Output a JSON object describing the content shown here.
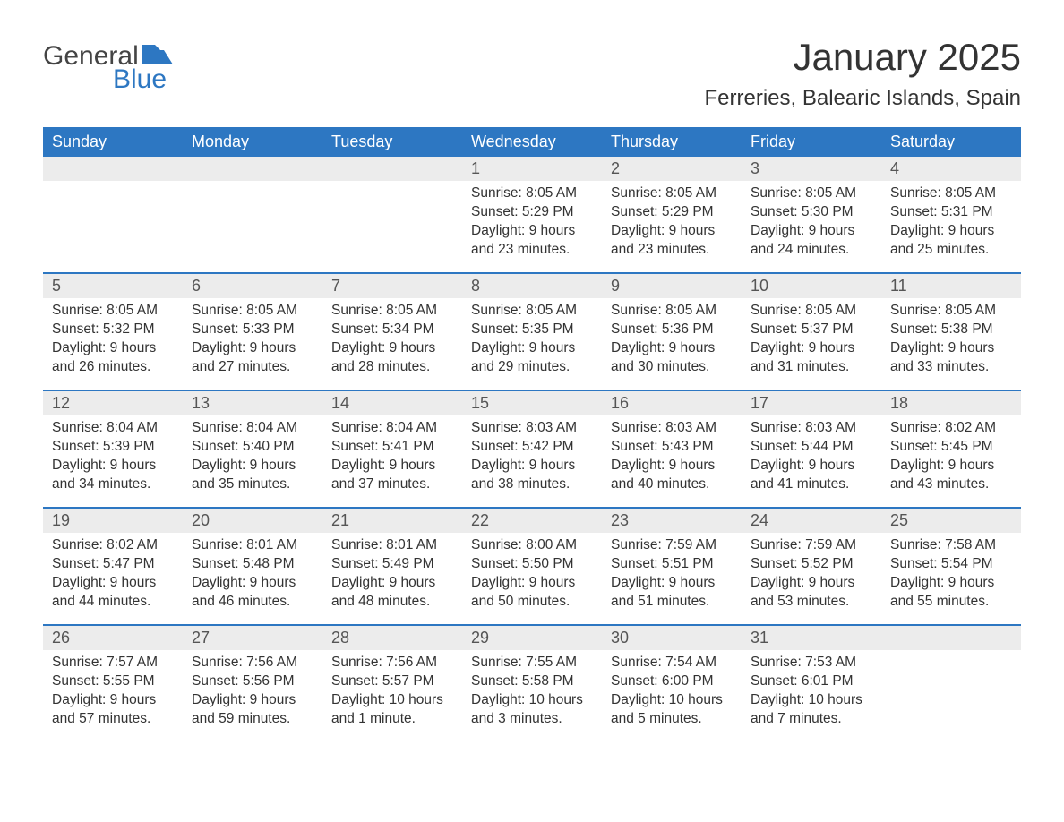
{
  "branding": {
    "word1": "General",
    "word2": "Blue",
    "word1_color": "#444444",
    "word2_color": "#2d77c2",
    "flag_color": "#2d77c2"
  },
  "header": {
    "month_title": "January 2025",
    "location": "Ferreries, Balearic Islands, Spain"
  },
  "styling": {
    "header_bg": "#2d77c2",
    "header_text": "#ffffff",
    "daynum_bg": "#ececec",
    "daynum_text": "#555555",
    "body_text": "#333333",
    "divider_color": "#2d77c2",
    "page_bg": "#ffffff",
    "header_fontsize": 18,
    "title_fontsize": 42,
    "location_fontsize": 24,
    "cell_fontsize": 15.5
  },
  "weekdays": [
    "Sunday",
    "Monday",
    "Tuesday",
    "Wednesday",
    "Thursday",
    "Friday",
    "Saturday"
  ],
  "weeks": [
    [
      {
        "empty": true
      },
      {
        "empty": true
      },
      {
        "empty": true
      },
      {
        "day": "1",
        "sunrise": "Sunrise: 8:05 AM",
        "sunset": "Sunset: 5:29 PM",
        "daylight1": "Daylight: 9 hours",
        "daylight2": "and 23 minutes."
      },
      {
        "day": "2",
        "sunrise": "Sunrise: 8:05 AM",
        "sunset": "Sunset: 5:29 PM",
        "daylight1": "Daylight: 9 hours",
        "daylight2": "and 23 minutes."
      },
      {
        "day": "3",
        "sunrise": "Sunrise: 8:05 AM",
        "sunset": "Sunset: 5:30 PM",
        "daylight1": "Daylight: 9 hours",
        "daylight2": "and 24 minutes."
      },
      {
        "day": "4",
        "sunrise": "Sunrise: 8:05 AM",
        "sunset": "Sunset: 5:31 PM",
        "daylight1": "Daylight: 9 hours",
        "daylight2": "and 25 minutes."
      }
    ],
    [
      {
        "day": "5",
        "sunrise": "Sunrise: 8:05 AM",
        "sunset": "Sunset: 5:32 PM",
        "daylight1": "Daylight: 9 hours",
        "daylight2": "and 26 minutes."
      },
      {
        "day": "6",
        "sunrise": "Sunrise: 8:05 AM",
        "sunset": "Sunset: 5:33 PM",
        "daylight1": "Daylight: 9 hours",
        "daylight2": "and 27 minutes."
      },
      {
        "day": "7",
        "sunrise": "Sunrise: 8:05 AM",
        "sunset": "Sunset: 5:34 PM",
        "daylight1": "Daylight: 9 hours",
        "daylight2": "and 28 minutes."
      },
      {
        "day": "8",
        "sunrise": "Sunrise: 8:05 AM",
        "sunset": "Sunset: 5:35 PM",
        "daylight1": "Daylight: 9 hours",
        "daylight2": "and 29 minutes."
      },
      {
        "day": "9",
        "sunrise": "Sunrise: 8:05 AM",
        "sunset": "Sunset: 5:36 PM",
        "daylight1": "Daylight: 9 hours",
        "daylight2": "and 30 minutes."
      },
      {
        "day": "10",
        "sunrise": "Sunrise: 8:05 AM",
        "sunset": "Sunset: 5:37 PM",
        "daylight1": "Daylight: 9 hours",
        "daylight2": "and 31 minutes."
      },
      {
        "day": "11",
        "sunrise": "Sunrise: 8:05 AM",
        "sunset": "Sunset: 5:38 PM",
        "daylight1": "Daylight: 9 hours",
        "daylight2": "and 33 minutes."
      }
    ],
    [
      {
        "day": "12",
        "sunrise": "Sunrise: 8:04 AM",
        "sunset": "Sunset: 5:39 PM",
        "daylight1": "Daylight: 9 hours",
        "daylight2": "and 34 minutes."
      },
      {
        "day": "13",
        "sunrise": "Sunrise: 8:04 AM",
        "sunset": "Sunset: 5:40 PM",
        "daylight1": "Daylight: 9 hours",
        "daylight2": "and 35 minutes."
      },
      {
        "day": "14",
        "sunrise": "Sunrise: 8:04 AM",
        "sunset": "Sunset: 5:41 PM",
        "daylight1": "Daylight: 9 hours",
        "daylight2": "and 37 minutes."
      },
      {
        "day": "15",
        "sunrise": "Sunrise: 8:03 AM",
        "sunset": "Sunset: 5:42 PM",
        "daylight1": "Daylight: 9 hours",
        "daylight2": "and 38 minutes."
      },
      {
        "day": "16",
        "sunrise": "Sunrise: 8:03 AM",
        "sunset": "Sunset: 5:43 PM",
        "daylight1": "Daylight: 9 hours",
        "daylight2": "and 40 minutes."
      },
      {
        "day": "17",
        "sunrise": "Sunrise: 8:03 AM",
        "sunset": "Sunset: 5:44 PM",
        "daylight1": "Daylight: 9 hours",
        "daylight2": "and 41 minutes."
      },
      {
        "day": "18",
        "sunrise": "Sunrise: 8:02 AM",
        "sunset": "Sunset: 5:45 PM",
        "daylight1": "Daylight: 9 hours",
        "daylight2": "and 43 minutes."
      }
    ],
    [
      {
        "day": "19",
        "sunrise": "Sunrise: 8:02 AM",
        "sunset": "Sunset: 5:47 PM",
        "daylight1": "Daylight: 9 hours",
        "daylight2": "and 44 minutes."
      },
      {
        "day": "20",
        "sunrise": "Sunrise: 8:01 AM",
        "sunset": "Sunset: 5:48 PM",
        "daylight1": "Daylight: 9 hours",
        "daylight2": "and 46 minutes."
      },
      {
        "day": "21",
        "sunrise": "Sunrise: 8:01 AM",
        "sunset": "Sunset: 5:49 PM",
        "daylight1": "Daylight: 9 hours",
        "daylight2": "and 48 minutes."
      },
      {
        "day": "22",
        "sunrise": "Sunrise: 8:00 AM",
        "sunset": "Sunset: 5:50 PM",
        "daylight1": "Daylight: 9 hours",
        "daylight2": "and 50 minutes."
      },
      {
        "day": "23",
        "sunrise": "Sunrise: 7:59 AM",
        "sunset": "Sunset: 5:51 PM",
        "daylight1": "Daylight: 9 hours",
        "daylight2": "and 51 minutes."
      },
      {
        "day": "24",
        "sunrise": "Sunrise: 7:59 AM",
        "sunset": "Sunset: 5:52 PM",
        "daylight1": "Daylight: 9 hours",
        "daylight2": "and 53 minutes."
      },
      {
        "day": "25",
        "sunrise": "Sunrise: 7:58 AM",
        "sunset": "Sunset: 5:54 PM",
        "daylight1": "Daylight: 9 hours",
        "daylight2": "and 55 minutes."
      }
    ],
    [
      {
        "day": "26",
        "sunrise": "Sunrise: 7:57 AM",
        "sunset": "Sunset: 5:55 PM",
        "daylight1": "Daylight: 9 hours",
        "daylight2": "and 57 minutes."
      },
      {
        "day": "27",
        "sunrise": "Sunrise: 7:56 AM",
        "sunset": "Sunset: 5:56 PM",
        "daylight1": "Daylight: 9 hours",
        "daylight2": "and 59 minutes."
      },
      {
        "day": "28",
        "sunrise": "Sunrise: 7:56 AM",
        "sunset": "Sunset: 5:57 PM",
        "daylight1": "Daylight: 10 hours",
        "daylight2": "and 1 minute."
      },
      {
        "day": "29",
        "sunrise": "Sunrise: 7:55 AM",
        "sunset": "Sunset: 5:58 PM",
        "daylight1": "Daylight: 10 hours",
        "daylight2": "and 3 minutes."
      },
      {
        "day": "30",
        "sunrise": "Sunrise: 7:54 AM",
        "sunset": "Sunset: 6:00 PM",
        "daylight1": "Daylight: 10 hours",
        "daylight2": "and 5 minutes."
      },
      {
        "day": "31",
        "sunrise": "Sunrise: 7:53 AM",
        "sunset": "Sunset: 6:01 PM",
        "daylight1": "Daylight: 10 hours",
        "daylight2": "and 7 minutes."
      },
      {
        "empty": true
      }
    ]
  ]
}
